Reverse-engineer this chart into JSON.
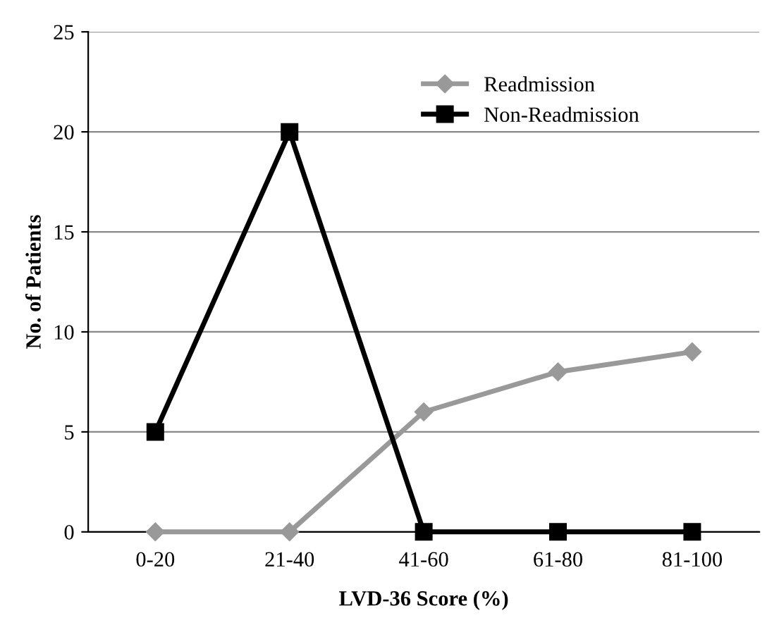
{
  "chart_data": {
    "type": "line",
    "xlabel": "LVD-36 Score (%)",
    "ylabel": "No. of Patients",
    "categories": [
      "0-20",
      "21-40",
      "41-60",
      "61-80",
      "81-100"
    ],
    "series": [
      {
        "name": "Readmission",
        "color": "#999999",
        "marker": "diamond",
        "values": [
          0,
          0,
          6,
          8,
          9
        ]
      },
      {
        "name": "Non-Readmission",
        "color": "#000000",
        "marker": "square",
        "values": [
          5,
          20,
          0,
          0,
          0
        ]
      }
    ],
    "ylim": [
      0,
      25
    ],
    "yticks": [
      0,
      5,
      10,
      15,
      20,
      25
    ],
    "grid": "y",
    "legend": "top right",
    "line_style": "solid"
  }
}
